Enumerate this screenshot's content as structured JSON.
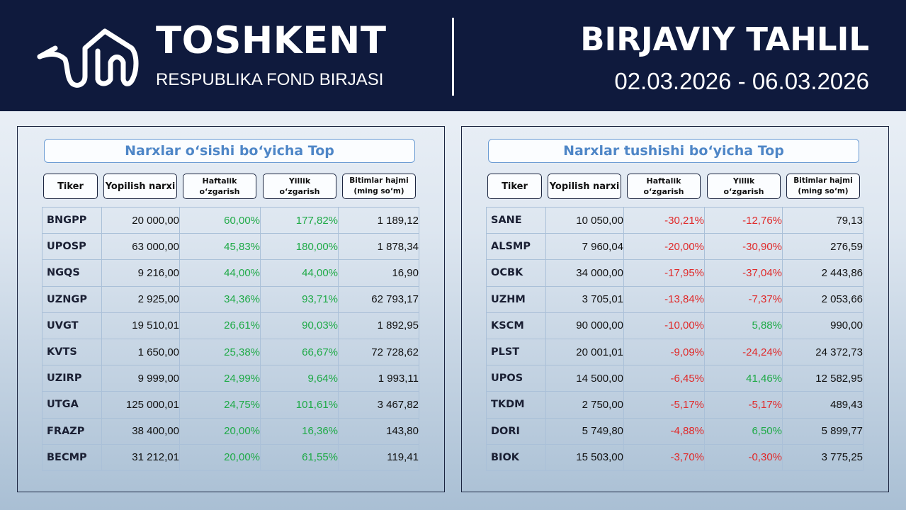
{
  "header": {
    "brand_title": "TOSHKENT",
    "brand_subtitle": "RESPUBLIKA FOND BIRJASI",
    "report_title": "BIRJAVIY TAHLIL",
    "report_dates": "02.03.2026 - 06.03.2026",
    "logo_icon": "stock-exchange-logo-icon"
  },
  "colors": {
    "header_bg": "#0f1a3d",
    "title_blue": "#4e86c7",
    "positive": "#1faa47",
    "negative": "#e02a2a"
  },
  "columns": {
    "ticker": "Tiker",
    "close_price": "Yopilish narxi",
    "weekly_l1": "Haftalik",
    "weekly_l2": "o‘zgarish",
    "yearly_l1": "Yillik",
    "yearly_l2": "o‘zgarish",
    "volume_l1": "Bitimlar hajmi",
    "volume_l2": "(ming so‘m)"
  },
  "gainers": {
    "title": "Narxlar o‘sishi bo‘yicha Top",
    "rows": [
      [
        "BNGPP",
        "20 000,00",
        "60,00%",
        "177,82%",
        "1 189,12"
      ],
      [
        "UPOSP",
        "63 000,00",
        "45,83%",
        "180,00%",
        "1 878,34"
      ],
      [
        "NGQS",
        "9 216,00",
        "44,00%",
        "44,00%",
        "16,90"
      ],
      [
        "UZNGP",
        "2 925,00",
        "34,36%",
        "93,71%",
        "62 793,17"
      ],
      [
        "UVGT",
        "19 510,01",
        "26,61%",
        "90,03%",
        "1 892,95"
      ],
      [
        "KVTS",
        "1 650,00",
        "25,38%",
        "66,67%",
        "72 728,62"
      ],
      [
        "UZIRP",
        "9 999,00",
        "24,99%",
        "9,64%",
        "1 993,11"
      ],
      [
        "UTGA",
        "125 000,01",
        "24,75%",
        "101,61%",
        "3 467,82"
      ],
      [
        "FRAZP",
        "38 400,00",
        "20,00%",
        "16,36%",
        "143,80"
      ],
      [
        "BECMP",
        "31 212,01",
        "20,00%",
        "61,55%",
        "119,41"
      ]
    ]
  },
  "losers": {
    "title": "Narxlar tushishi bo‘yicha Top",
    "rows": [
      [
        "SANE",
        "10 050,00",
        "-30,21%",
        "-12,76%",
        "79,13"
      ],
      [
        "ALSMP",
        "7 960,04",
        "-20,00%",
        "-30,90%",
        "276,59"
      ],
      [
        "OCBK",
        "34 000,00",
        "-17,95%",
        "-37,04%",
        "2 443,86"
      ],
      [
        "UZHM",
        "3 705,01",
        "-13,84%",
        "-7,37%",
        "2 053,66"
      ],
      [
        "KSCM",
        "90 000,00",
        "-10,00%",
        "5,88%",
        "990,00"
      ],
      [
        "PLST",
        "20 001,01",
        "-9,09%",
        "-24,24%",
        "24 372,73"
      ],
      [
        "UPOS",
        "14 500,00",
        "-6,45%",
        "41,46%",
        "12 582,95"
      ],
      [
        "TKDM",
        "2 750,00",
        "-5,17%",
        "-5,17%",
        "489,43"
      ],
      [
        "DORI",
        "5 749,80",
        "-4,88%",
        "6,50%",
        "5 899,77"
      ],
      [
        "BIOK",
        "15 503,00",
        "-3,70%",
        "-0,30%",
        "3 775,25"
      ]
    ]
  }
}
